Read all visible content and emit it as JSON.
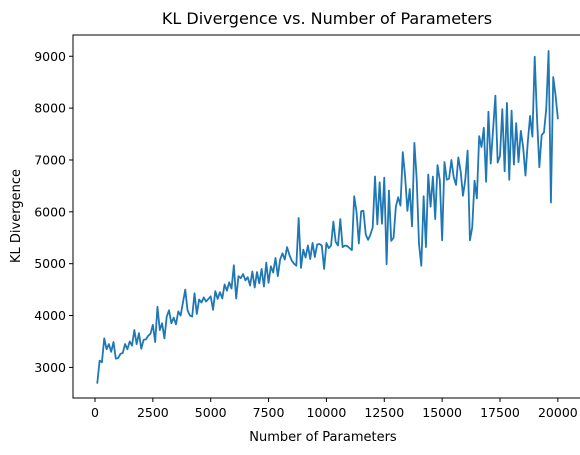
{
  "chart_data": {
    "type": "line",
    "title": "KL Divergence vs. Number of Parameters",
    "xlabel": "Number of Parameters",
    "ylabel": "KL Divergence",
    "xlim": [
      -950,
      21000
    ],
    "ylim": [
      2410,
      9410
    ],
    "xticks": [
      0,
      2500,
      5000,
      7500,
      10000,
      12500,
      15000,
      17500,
      20000
    ],
    "xtick_labels": [
      "0",
      "2500",
      "5000",
      "7500",
      "10000",
      "12500",
      "15000",
      "17500",
      "20000"
    ],
    "yticks": [
      3000,
      4000,
      5000,
      6000,
      7000,
      8000,
      9000
    ],
    "ytick_labels": [
      "3000",
      "4000",
      "5000",
      "6000",
      "7000",
      "8000",
      "9000"
    ],
    "grid": false,
    "series": [
      {
        "color": "#1f77b4",
        "x": [
          100,
          200,
          300,
          400,
          500,
          600,
          700,
          800,
          900,
          1000,
          1100,
          1200,
          1300,
          1400,
          1500,
          1600,
          1700,
          1800,
          1900,
          2000,
          2100,
          2200,
          2300,
          2400,
          2500,
          2600,
          2700,
          2800,
          2900,
          3000,
          3100,
          3200,
          3300,
          3400,
          3500,
          3600,
          3700,
          3800,
          3900,
          4000,
          4100,
          4200,
          4300,
          4400,
          4500,
          4600,
          4700,
          4800,
          4900,
          5000,
          5100,
          5200,
          5300,
          5400,
          5500,
          5600,
          5700,
          5800,
          5900,
          6000,
          6100,
          6200,
          6300,
          6400,
          6500,
          6600,
          6700,
          6800,
          6900,
          7000,
          7100,
          7200,
          7300,
          7400,
          7500,
          7600,
          7700,
          7800,
          7900,
          8000,
          8100,
          8200,
          8300,
          8400,
          8500,
          8600,
          8700,
          8800,
          8900,
          9000,
          9100,
          9200,
          9300,
          9400,
          9500,
          9600,
          9700,
          9800,
          9900,
          10000,
          10100,
          10200,
          10300,
          10400,
          10500,
          10600,
          10700,
          10800,
          10900,
          11000,
          11100,
          11200,
          11300,
          11400,
          11500,
          11600,
          11700,
          11800,
          11900,
          12000,
          12100,
          12200,
          12300,
          12400,
          12500,
          12600,
          12700,
          12800,
          12900,
          13000,
          13100,
          13200,
          13300,
          13400,
          13500,
          13600,
          13700,
          13800,
          13900,
          14000,
          14100,
          14200,
          14300,
          14400,
          14500,
          14600,
          14700,
          14800,
          14900,
          15000,
          15100,
          15200,
          15300,
          15400,
          15500,
          15600,
          15700,
          15800,
          15900,
          16000,
          16100,
          16200,
          16300,
          16400,
          16500,
          16600,
          16700,
          16800,
          16900,
          17000,
          17100,
          17200,
          17300,
          17400,
          17500,
          17600,
          17700,
          17800,
          17900,
          18000,
          18100,
          18200,
          18300,
          18400,
          18500,
          18600,
          18700,
          18800,
          18900,
          19000,
          19100,
          19200,
          19300,
          19400,
          19500,
          19600,
          19700,
          19800,
          19900,
          20000
        ],
        "values": [
          2700,
          3130,
          3100,
          3560,
          3350,
          3450,
          3300,
          3490,
          3170,
          3180,
          3260,
          3280,
          3450,
          3350,
          3500,
          3420,
          3720,
          3450,
          3660,
          3360,
          3530,
          3540,
          3610,
          3650,
          3820,
          3490,
          4170,
          3720,
          3850,
          3560,
          3980,
          4100,
          3850,
          3960,
          3830,
          4080,
          4000,
          4250,
          4500,
          4100,
          4000,
          3980,
          4430,
          4030,
          4310,
          4250,
          4350,
          4270,
          4320,
          4370,
          4110,
          4470,
          4320,
          4450,
          4330,
          4600,
          4480,
          4640,
          4520,
          4970,
          4330,
          4760,
          4720,
          4800,
          4680,
          4740,
          4580,
          4850,
          4540,
          4840,
          4620,
          4900,
          4560,
          5020,
          4630,
          4950,
          4830,
          5110,
          4760,
          5080,
          5200,
          5080,
          5320,
          5170,
          5060,
          5000,
          4960,
          5880,
          4920,
          5270,
          5120,
          5350,
          5090,
          5400,
          5130,
          5370,
          5380,
          5350,
          4900,
          5400,
          5300,
          5350,
          5810,
          5420,
          5350,
          5860,
          5320,
          5350,
          5340,
          5300,
          5260,
          6300,
          6000,
          5390,
          6010,
          6020,
          5560,
          5460,
          5560,
          5700,
          6680,
          5760,
          6570,
          5770,
          6660,
          4990,
          6410,
          5440,
          5500,
          6100,
          6280,
          6120,
          7150,
          6680,
          6020,
          6440,
          5720,
          7330,
          6640,
          5380,
          4960,
          6300,
          5320,
          6720,
          6100,
          6680,
          5860,
          6900,
          6610,
          5450,
          6960,
          6620,
          6640,
          7000,
          6670,
          6520,
          7050,
          6780,
          6310,
          6620,
          7180,
          5450,
          5700,
          6600,
          6260,
          7460,
          7250,
          7620,
          6580,
          7930,
          6930,
          7580,
          8240,
          6950,
          7080,
          7980,
          6780,
          8100,
          6620,
          7950,
          6910,
          7710,
          6960,
          7560,
          7250,
          6700,
          7340,
          7850,
          7450,
          8990,
          7800,
          6860,
          7480,
          7530,
          8000,
          9100,
          6180,
          8600,
          8250,
          7800
        ]
      }
    ]
  }
}
